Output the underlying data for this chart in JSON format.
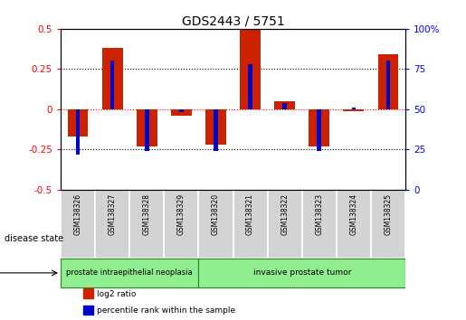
{
  "title": "GDS2443 / 5751",
  "samples": [
    "GSM138326",
    "GSM138327",
    "GSM138328",
    "GSM138329",
    "GSM138320",
    "GSM138321",
    "GSM138322",
    "GSM138323",
    "GSM138324",
    "GSM138325"
  ],
  "log2_ratio": [
    -0.17,
    0.38,
    -0.23,
    -0.04,
    -0.22,
    0.5,
    0.05,
    -0.23,
    -0.01,
    0.34
  ],
  "percentile_rank": [
    22,
    80,
    24,
    48,
    24,
    78,
    54,
    24,
    51,
    80
  ],
  "ylim_left": [
    -0.5,
    0.5
  ],
  "ylim_right": [
    0,
    100
  ],
  "yticks_left": [
    -0.5,
    -0.25,
    0,
    0.25,
    0.5
  ],
  "yticks_right": [
    0,
    25,
    50,
    75,
    100
  ],
  "ytick_labels_left": [
    "-0.5",
    "-0.25",
    "0",
    "0.25",
    "0.5"
  ],
  "ytick_labels_right": [
    "0",
    "25",
    "50",
    "75",
    "100%"
  ],
  "hlines_dotted": [
    0.25,
    -0.25
  ],
  "hline_red": 0.0,
  "disease_groups": [
    {
      "label": "prostate intraepithelial neoplasia",
      "start": 0,
      "end": 4
    },
    {
      "label": "invasive prostate tumor",
      "start": 4,
      "end": 10
    }
  ],
  "bar_color_red": "#cc2200",
  "bar_color_blue": "#0000cc",
  "bar_width": 0.6,
  "blue_bar_width": 0.12,
  "background_color": "#ffffff",
  "plot_bg_color": "#ffffff",
  "sample_label_bg": "#d3d3d3",
  "green_color": "#90ee90",
  "green_edge": "#228B22",
  "legend_items": [
    {
      "label": "log2 ratio",
      "color": "#cc2200"
    },
    {
      "label": "percentile rank within the sample",
      "color": "#0000cc"
    }
  ],
  "disease_label": "disease state"
}
